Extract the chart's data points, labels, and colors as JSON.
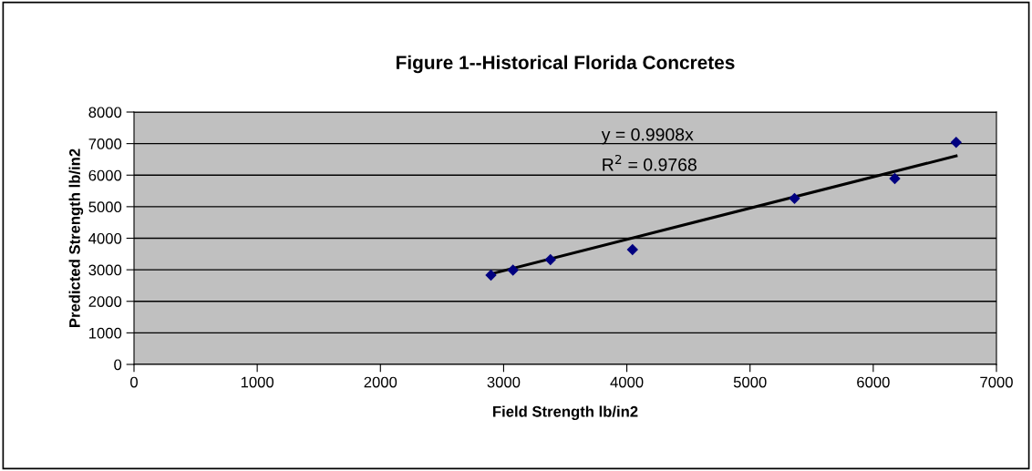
{
  "chart_data": {
    "type": "scatter",
    "title": "Figure 1--Historical Florida Concretes",
    "xlabel": "Field Strength lb/in2",
    "ylabel": "Predicted Strength lb/in2",
    "xlim": [
      0,
      7000
    ],
    "xticks": [
      0,
      1000,
      2000,
      3000,
      4000,
      5000,
      6000,
      7000
    ],
    "ylim": [
      0,
      8000
    ],
    "yticks": [
      0,
      1000,
      2000,
      3000,
      4000,
      5000,
      6000,
      7000,
      8000
    ],
    "grid": "y",
    "series": [
      {
        "marker": "diamond",
        "color": "#000080",
        "x": [
          2897,
          3076,
          3380,
          4046,
          5361,
          6175,
          6673
        ],
        "values": [
          2830,
          2990,
          3320,
          3640,
          5260,
          5890,
          7040
        ]
      },
      {
        "type": "line",
        "marker": "none",
        "color": "#000000",
        "x": [
          2897,
          6673
        ],
        "values": [
          2870,
          6610
        ]
      }
    ],
    "annotations": [
      "y = 0.9908x",
      "R$^{2}$ = 0.9768"
    ]
  }
}
